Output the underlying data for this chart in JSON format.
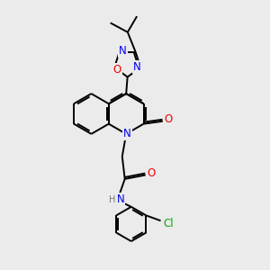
{
  "background_color": "#ebebeb",
  "bond_color": "#000000",
  "bond_width": 1.4,
  "atom_colors": {
    "N": "#0000ee",
    "O": "#ee0000",
    "Cl": "#00aa00",
    "H": "#777777",
    "C": "#000000"
  },
  "font_size_atom": 8.5,
  "font_size_small": 7.0
}
